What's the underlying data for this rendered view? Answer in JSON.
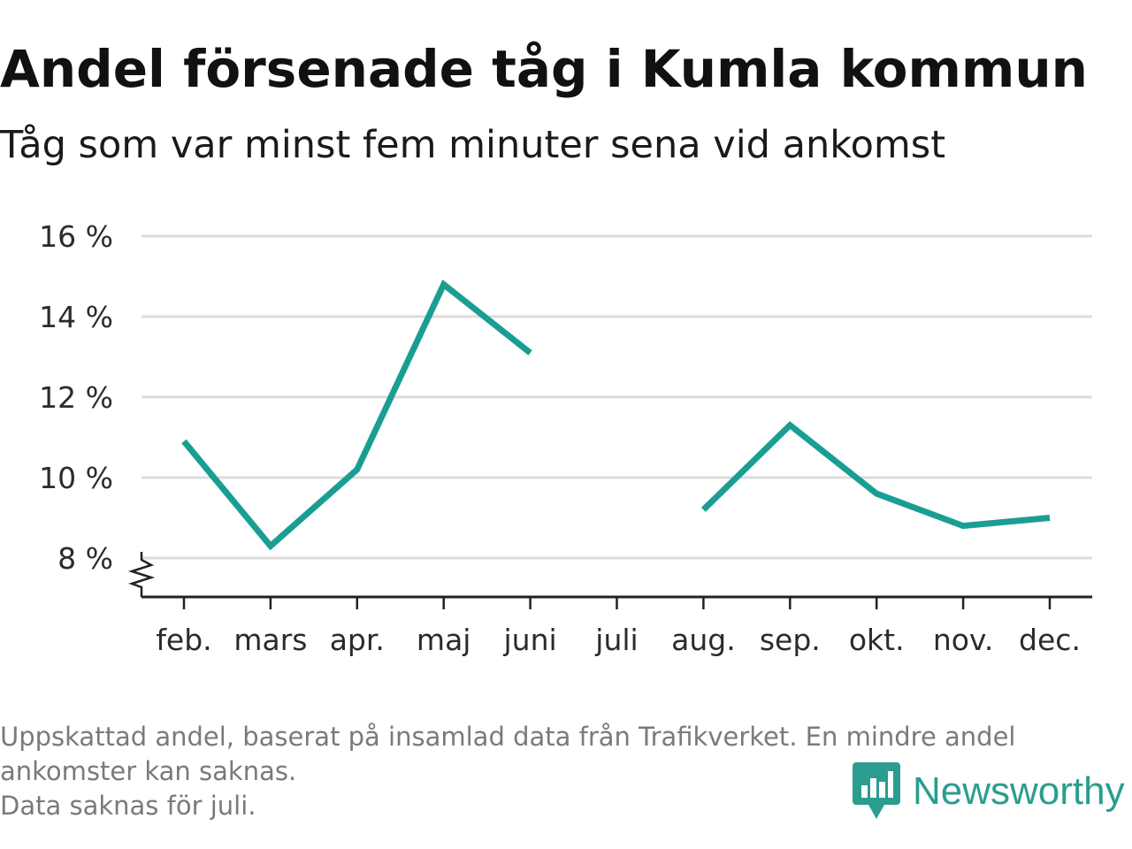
{
  "header": {
    "title": "Andel försenade tåg i Kumla kommun",
    "subtitle": "Tåg som var minst fem minuter sena vid ankomst"
  },
  "chart_data": {
    "type": "line",
    "title": "Andel försenade tåg i Kumla kommun",
    "subtitle": "Tåg som var minst fem minuter sena vid ankomst",
    "categories": [
      "feb.",
      "mars",
      "apr.",
      "maj",
      "juni",
      "juli",
      "aug.",
      "sep.",
      "okt.",
      "nov.",
      "dec."
    ],
    "series": [
      {
        "values": [
          10.9,
          8.3,
          10.2,
          14.8,
          13.1,
          null,
          9.2,
          11.3,
          9.6,
          8.8,
          9.0
        ]
      }
    ],
    "ylim": [
      7,
      16
    ],
    "yticks": [
      8,
      10,
      12,
      14,
      16
    ],
    "ytick_suffix": " %",
    "axis_break": true,
    "grid": true,
    "line_color": "#1a9e94"
  },
  "footnote": {
    "lines": [
      "Uppskattad andel, baserat på insamlad data från Trafikverket. En mindre andel",
      "ankomster kan saknas.",
      "Data saknas för juli."
    ]
  },
  "brand": {
    "name": "Newsworthy",
    "icon": "newsworthy-logo-icon",
    "color": "#2a9d8f"
  }
}
